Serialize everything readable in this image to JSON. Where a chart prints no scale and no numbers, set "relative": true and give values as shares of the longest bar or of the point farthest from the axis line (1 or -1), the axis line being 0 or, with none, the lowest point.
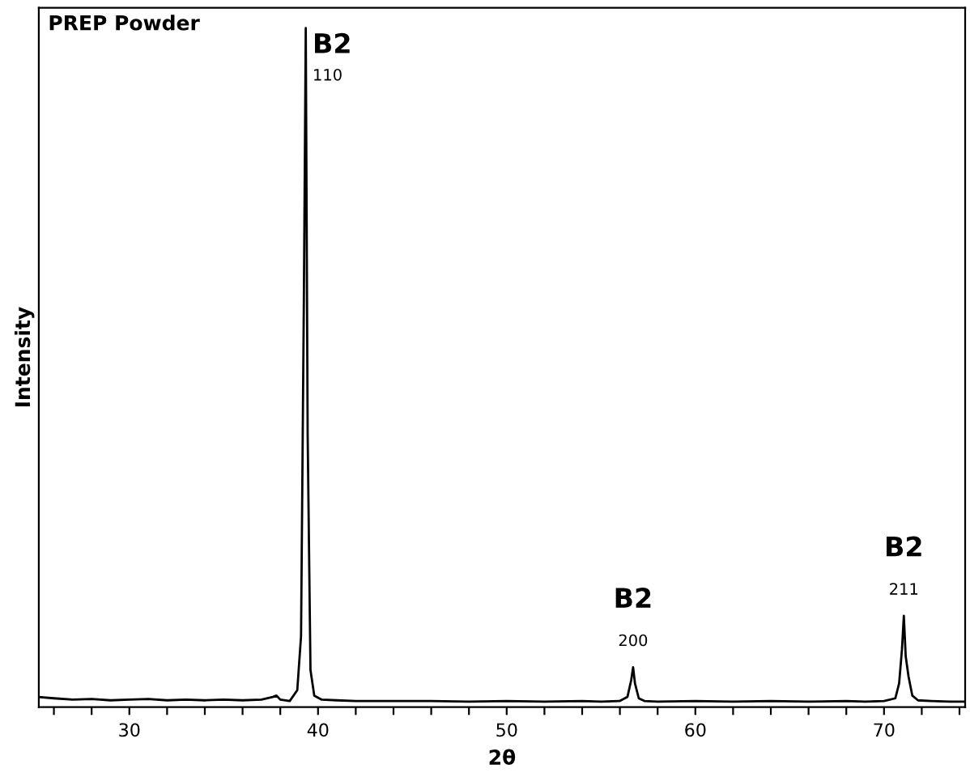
{
  "chart_data": {
    "type": "line",
    "title": "PREP Powder",
    "xlabel": "2θ",
    "ylabel": "Intensity",
    "relative": true,
    "xlim": [
      25.2,
      74.3
    ],
    "xticks": [
      {
        "value": 26,
        "label": null
      },
      {
        "value": 28,
        "label": null
      },
      30,
      {
        "value": 32,
        "label": null
      },
      {
        "value": 34,
        "label": null
      },
      {
        "value": 36,
        "label": null
      },
      {
        "value": 38,
        "label": null
      },
      40,
      {
        "value": 42,
        "label": null
      },
      {
        "value": 44,
        "label": null
      },
      {
        "value": 46,
        "label": null
      },
      {
        "value": 48,
        "label": null
      },
      50,
      {
        "value": 52,
        "label": null
      },
      {
        "value": 54,
        "label": null
      },
      {
        "value": 56,
        "label": null
      },
      {
        "value": 58,
        "label": null
      },
      60,
      {
        "value": 62,
        "label": null
      },
      {
        "value": 64,
        "label": null
      },
      {
        "value": 66,
        "label": null
      },
      {
        "value": 68,
        "label": null
      },
      70,
      {
        "value": 72,
        "label": null
      },
      {
        "value": 74,
        "label": null
      }
    ],
    "series": [
      {
        "color": "#000000",
        "x": [
          25.2,
          26,
          27,
          28,
          29,
          30,
          31,
          32,
          33,
          34,
          35,
          36,
          37,
          37.6,
          37.8,
          38,
          38.5,
          38.9,
          39.1,
          39.25,
          39.35,
          39.45,
          39.6,
          39.8,
          40.2,
          41,
          42,
          44,
          46,
          48,
          50,
          52,
          54,
          55,
          56,
          56.4,
          56.6,
          56.7,
          56.8,
          57,
          57.3,
          58,
          60,
          62,
          64,
          66,
          68,
          69,
          70,
          70.6,
          70.8,
          70.95,
          71.05,
          71.15,
          71.3,
          71.5,
          71.8,
          72.5,
          73.5,
          74.3
        ],
        "values": [
          0.01,
          0.008,
          0.006,
          0.007,
          0.005,
          0.006,
          0.007,
          0.005,
          0.006,
          0.005,
          0.006,
          0.005,
          0.006,
          0.01,
          0.012,
          0.006,
          0.004,
          0.02,
          0.1,
          0.6,
          1,
          0.4,
          0.05,
          0.012,
          0.006,
          0.005,
          0.004,
          0.004,
          0.004,
          0.003,
          0.004,
          0.003,
          0.004,
          0.003,
          0.004,
          0.01,
          0.035,
          0.054,
          0.03,
          0.008,
          0.004,
          0.003,
          0.004,
          0.003,
          0.004,
          0.003,
          0.004,
          0.003,
          0.004,
          0.008,
          0.03,
          0.08,
          0.13,
          0.07,
          0.04,
          0.012,
          0.005,
          0.004,
          0.003,
          0.003
        ]
      }
    ],
    "annotations": [
      {
        "text": "B2",
        "x": 39.35,
        "y": 1
      },
      {
        "text": "110",
        "x": 39.35,
        "y": 1
      },
      {
        "text": "B2",
        "x": 56.7,
        "y": 0.054
      },
      {
        "text": "200",
        "x": 56.7,
        "y": 0.054
      },
      {
        "text": "B2",
        "x": 71.05,
        "y": 0.13
      },
      {
        "text": "211",
        "x": 71.05,
        "y": 0.13
      }
    ]
  }
}
